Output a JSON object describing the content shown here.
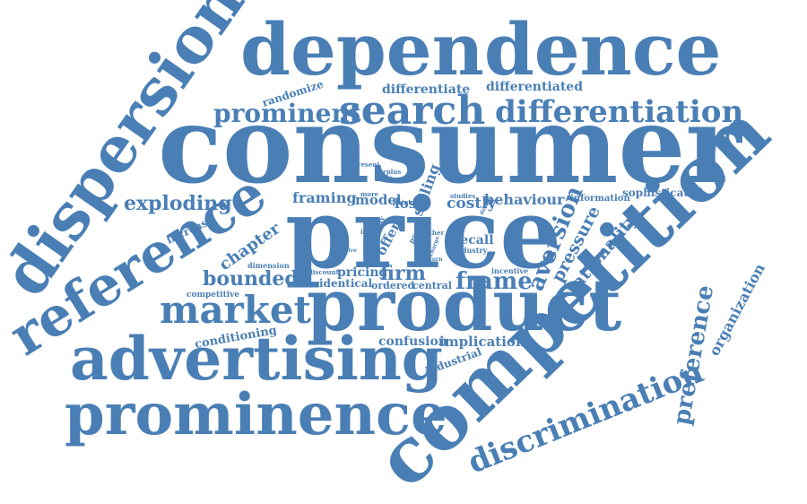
{
  "colors": {
    "word": "#4a7fb5",
    "background": "#ffffff"
  },
  "words": {
    "consumer": "consumer",
    "competition": "competition",
    "dependence": "dependence",
    "price": "price",
    "product": "product",
    "advertising": "advertising",
    "prominence": "prominence",
    "dispersion": "dispersion",
    "reference": "reference",
    "search": "search",
    "differentiation": "differentiation",
    "prominent": "prominent",
    "market": "market",
    "discrimination": "discrimination",
    "preference": "preference",
    "exploding": "exploding",
    "aversion": "aversion",
    "pressure": "pressure",
    "rationality": "rationality",
    "organization": "organization",
    "frame": "frame",
    "firm": "firm",
    "bounded": "bounded",
    "chapter": "chapter",
    "increase": "increase",
    "framing": "framing",
    "model": "model",
    "loss": "loss",
    "selling": "selling",
    "costly": "costly",
    "behaviour": "behaviour",
    "information": "information",
    "sophisticated": "sophisticated",
    "differentiate": "differentiate",
    "differentiated": "differentiated",
    "randomize": "randomize",
    "recall": "recall",
    "pricing": "pricing",
    "identical": "identical",
    "ordered": "ordered",
    "central": "central",
    "confusion": "confusion",
    "implication": "implication",
    "industrial": "industrial",
    "conditioning": "conditioning",
    "competitive": "competitive",
    "dimension": "dimension",
    "discount": "discount",
    "offer": "offer",
    "incentive": "incentive",
    "intensities": "intensities",
    "present": "present",
    "surplus": "surplus",
    "making": "making",
    "more": "more",
    "lower": "lower",
    "naive": "naive",
    "essay": "essay",
    "profit": "profit",
    "point": "point",
    "studies": "studies",
    "other": "other",
    "design": "design",
    "charge": "charge",
    "industry": "industry",
    "return": "return"
  }
}
